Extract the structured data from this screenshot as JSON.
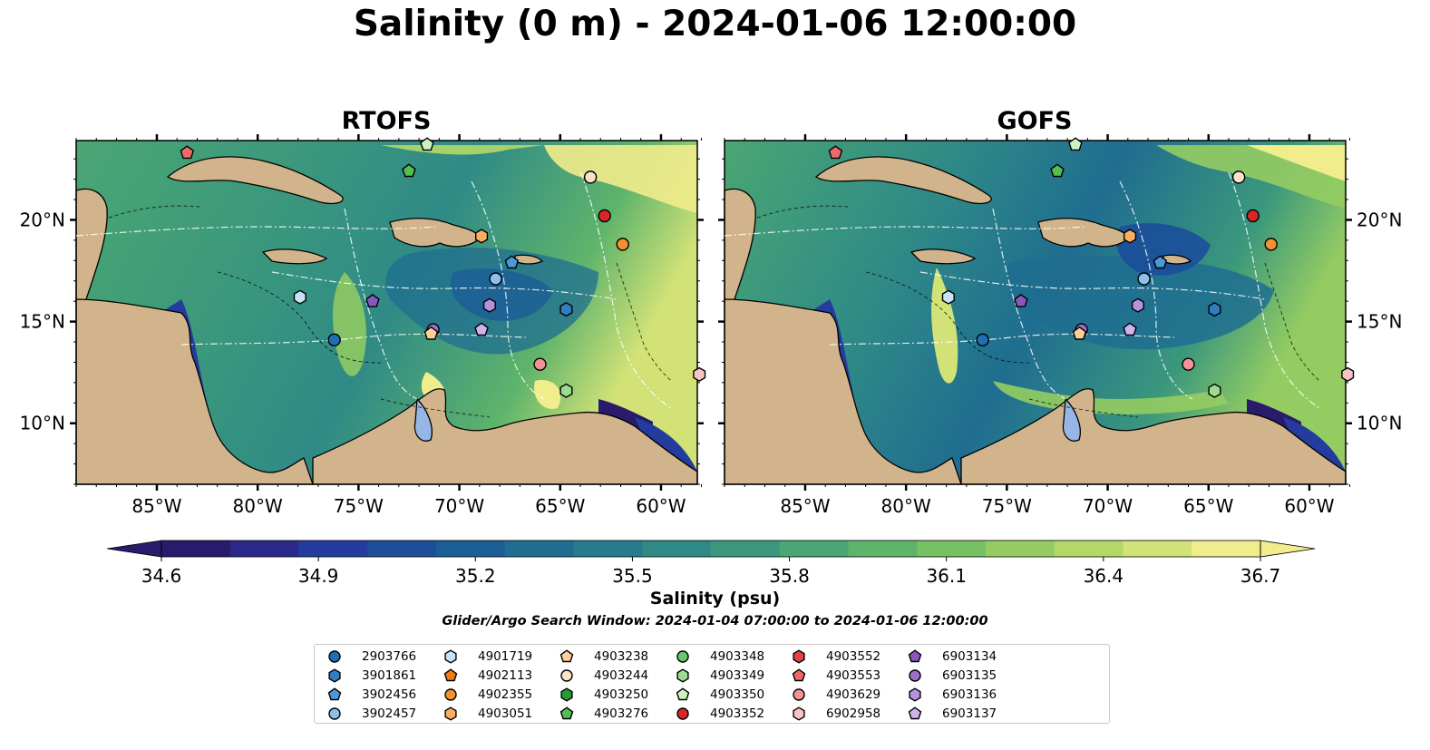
{
  "title": "Salinity (0 m) - 2024-01-06 12:00:00",
  "panels": [
    {
      "title": "RTOFS"
    },
    {
      "title": "GOFS"
    }
  ],
  "axes": {
    "lon_ticks": [
      "85°W",
      "80°W",
      "75°W",
      "70°W",
      "65°W",
      "60°W"
    ],
    "lat_ticks": [
      "20°N",
      "15°N",
      "10°N"
    ]
  },
  "colorbar": {
    "label": "Salinity (psu)",
    "ticks": [
      "34.6",
      "34.9",
      "35.2",
      "35.5",
      "35.8",
      "36.1",
      "36.4",
      "36.7"
    ],
    "range": [
      34.6,
      36.7
    ],
    "colors": [
      "#2a1a6b",
      "#2b2a8c",
      "#233c9d",
      "#1c4e9a",
      "#1b5e96",
      "#1f6d90",
      "#267c8c",
      "#2f8a86",
      "#3b987c",
      "#4aa673",
      "#5fb46b",
      "#78c064",
      "#94cc62",
      "#b3d868",
      "#d2e277",
      "#f1ec8c"
    ]
  },
  "search_window": "Glider/Argo Search Window: 2024-01-04 07:00:00 to 2024-01-06 12:00:00",
  "legend": [
    {
      "id": "2903766",
      "marker": "circle",
      "color": "#1f6fb4"
    },
    {
      "id": "3901861",
      "marker": "hexagon",
      "color": "#2f7fc0"
    },
    {
      "id": "3902456",
      "marker": "pentagon",
      "color": "#4c98d8"
    },
    {
      "id": "3902457",
      "marker": "circle",
      "color": "#8cc0ea"
    },
    {
      "id": "4901719",
      "marker": "hexagon",
      "color": "#c6e2f6"
    },
    {
      "id": "4902113",
      "marker": "pentagon",
      "color": "#ef7d14"
    },
    {
      "id": "4902355",
      "marker": "circle",
      "color": "#f69035"
    },
    {
      "id": "4903051",
      "marker": "hexagon",
      "color": "#fbad62"
    },
    {
      "id": "4903238",
      "marker": "pentagon",
      "color": "#fdcf9a"
    },
    {
      "id": "4903244",
      "marker": "circle",
      "color": "#fde2c5"
    },
    {
      "id": "4903250",
      "marker": "hexagon",
      "color": "#279a33"
    },
    {
      "id": "4903276",
      "marker": "pentagon",
      "color": "#56bd51"
    },
    {
      "id": "4903348",
      "marker": "circle",
      "color": "#6cc56a"
    },
    {
      "id": "4903349",
      "marker": "hexagon",
      "color": "#9bdc8e"
    },
    {
      "id": "4903350",
      "marker": "pentagon",
      "color": "#ccf2c1"
    },
    {
      "id": "4903352",
      "marker": "circle",
      "color": "#d62628"
    },
    {
      "id": "4903552",
      "marker": "hexagon",
      "color": "#e04449"
    },
    {
      "id": "4903553",
      "marker": "pentagon",
      "color": "#ec6a6a"
    },
    {
      "id": "4903629",
      "marker": "circle",
      "color": "#f29494"
    },
    {
      "id": "6902958",
      "marker": "hexagon",
      "color": "#f8c3c3"
    },
    {
      "id": "6903134",
      "marker": "pentagon",
      "color": "#8a58bd"
    },
    {
      "id": "6903135",
      "marker": "circle",
      "color": "#9c6fcc"
    },
    {
      "id": "6903136",
      "marker": "hexagon",
      "color": "#b591de"
    },
    {
      "id": "6903137",
      "marker": "pentagon",
      "color": "#d0b3ee"
    }
  ],
  "stations": [
    {
      "id": "4903553",
      "lon": -83.5,
      "lat": 23.3
    },
    {
      "id": "4903350",
      "lon": -71.6,
      "lat": 23.7
    },
    {
      "id": "4903276",
      "lon": -72.5,
      "lat": 22.4
    },
    {
      "id": "4903244",
      "lon": -63.5,
      "lat": 22.1
    },
    {
      "id": "4903352",
      "lon": -62.8,
      "lat": 20.2
    },
    {
      "id": "4903051",
      "lon": -68.9,
      "lat": 19.2
    },
    {
      "id": "4902355",
      "lon": -61.9,
      "lat": 18.8
    },
    {
      "id": "3902456",
      "lon": -67.4,
      "lat": 17.9
    },
    {
      "id": "3902457",
      "lon": -68.2,
      "lat": 17.1
    },
    {
      "id": "4901719",
      "lon": -77.9,
      "lat": 16.2
    },
    {
      "id": "6903134",
      "lon": -74.3,
      "lat": 16.0
    },
    {
      "id": "6903136",
      "lon": -68.5,
      "lat": 15.8
    },
    {
      "id": "3901861",
      "lon": -64.7,
      "lat": 15.6
    },
    {
      "id": "6903135",
      "lon": -71.3,
      "lat": 14.6
    },
    {
      "id": "6903137",
      "lon": -68.9,
      "lat": 14.6
    },
    {
      "id": "2903766",
      "lon": -76.2,
      "lat": 14.1
    },
    {
      "id": "4903629",
      "lon": -66.0,
      "lat": 12.9
    },
    {
      "id": "6902958",
      "lon": -58.1,
      "lat": 12.4
    },
    {
      "id": "4903349",
      "lon": -64.7,
      "lat": 11.6
    },
    {
      "id": "4903238",
      "lon": -71.4,
      "lat": 14.4
    }
  ]
}
